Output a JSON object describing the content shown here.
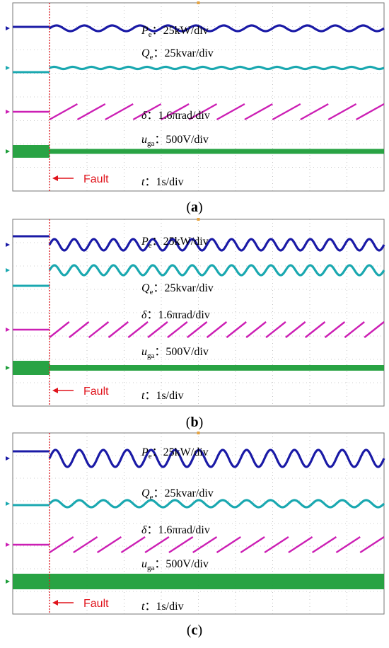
{
  "figure": {
    "colors": {
      "pe": "#1a1aa6",
      "qe": "#1aa8b0",
      "delta": "#cc1fb4",
      "uga": "#1d9e3a",
      "fault": "#e0141c",
      "grid": "#9a9a9a"
    }
  },
  "chart_data": [
    {
      "type": "line",
      "caption": "a",
      "fault_label": "Fault",
      "time_label": {
        "sym": "t",
        "text": "：1s/div"
      },
      "series": [
        {
          "key": "pe",
          "sym": "P",
          "sub": "e",
          "text": "：25kW/div",
          "cycles_after": 12,
          "amplitude": 4,
          "pre_offset": -2
        },
        {
          "key": "qe",
          "sym": "Q",
          "sub": "e",
          "text": "：25kvar/div",
          "cycles_after": 18,
          "amplitude": 1.5,
          "pre_offset": 6
        },
        {
          "key": "delta",
          "sym": "δ",
          "sub": "",
          "text": "：1.6πrad/div",
          "sawtooth_periods": 12,
          "sawtooth_amplitude": 22
        },
        {
          "key": "uga",
          "sym": "u",
          "sub": "ga",
          "text": "：500V/div",
          "band_before": 18,
          "band_after": 7
        }
      ]
    },
    {
      "type": "line",
      "caption": "b",
      "fault_label": "Fault",
      "time_label": {
        "sym": "t",
        "text": "：1s/div"
      },
      "series": [
        {
          "key": "pe",
          "sym": "P",
          "sub": "e",
          "text": "：25kW/div",
          "cycles_after": 17,
          "amplitude": 8,
          "pre_offset": -12
        },
        {
          "key": "qe",
          "sym": "Q",
          "sub": "e",
          "text": "：25kvar/div",
          "cycles_after": 17,
          "amplitude": 7,
          "pre_offset": 22
        },
        {
          "key": "delta",
          "sym": "δ",
          "sub": "",
          "text": "：1.6πrad/div",
          "sawtooth_periods": 17,
          "sawtooth_amplitude": 22
        },
        {
          "key": "uga",
          "sym": "u",
          "sub": "ga",
          "text": "：500V/div",
          "band_before": 20,
          "band_after": 8
        }
      ]
    },
    {
      "type": "line",
      "caption": "c",
      "fault_label": "Fault",
      "time_label": {
        "sym": "t",
        "text": "：1s/div"
      },
      "series": [
        {
          "key": "pe",
          "sym": "P",
          "sub": "e",
          "text": "：25kW/div",
          "cycles_after": 14,
          "amplitude": 12,
          "pre_offset": -10
        },
        {
          "key": "qe",
          "sym": "Q",
          "sub": "e",
          "text": "：25kvar/div",
          "cycles_after": 14,
          "amplitude": 5,
          "pre_offset": 2
        },
        {
          "key": "delta",
          "sym": "δ",
          "sub": "",
          "text": "：1.6πrad/div",
          "sawtooth_periods": 14,
          "sawtooth_amplitude": 22
        },
        {
          "key": "uga",
          "sym": "u",
          "sub": "ga",
          "text": "：500V/div",
          "band_before": 22,
          "band_after": 22
        }
      ]
    }
  ]
}
